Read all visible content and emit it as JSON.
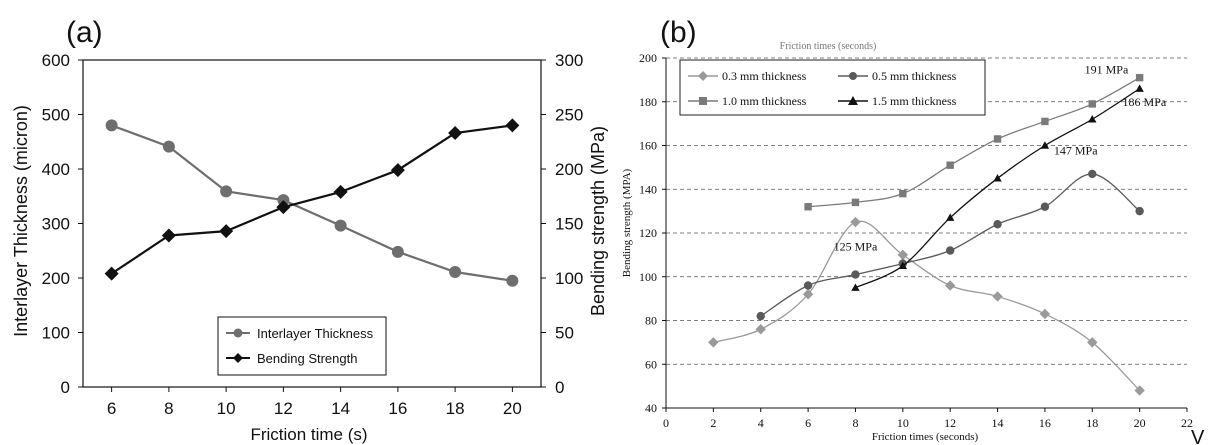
{
  "chart_data": [
    {
      "type": "line",
      "panel_label": "(a)",
      "xlabel": "Friction time (s)",
      "ylabel_left": "Interlayer Thickness (micron)",
      "ylabel_right": "Bending strength (MPa)",
      "x_ticks": [
        "6",
        "8",
        "10",
        "12",
        "14",
        "16",
        "18",
        "20"
      ],
      "y_left_ticks": [
        "0",
        "100",
        "200",
        "300",
        "400",
        "500",
        "600"
      ],
      "y_right_ticks": [
        "0",
        "50",
        "100",
        "150",
        "200",
        "250",
        "300"
      ],
      "ylim_left": [
        0,
        600
      ],
      "ylim_right": [
        0,
        300
      ],
      "grid": false,
      "legend_placement": "bottom-right",
      "series": [
        {
          "name": "Interlayer Thickness",
          "axis": "left",
          "marker": "circle",
          "color": "#6e6e6e",
          "x": [
            6,
            8,
            10,
            12,
            14,
            16,
            18,
            20
          ],
          "values": [
            480,
            441,
            359,
            343,
            296,
            248,
            211,
            195
          ]
        },
        {
          "name": "Bending Strength",
          "axis": "right",
          "marker": "diamond",
          "color": "#111111",
          "x": [
            6,
            8,
            10,
            12,
            14,
            16,
            18,
            20
          ],
          "values": [
            104,
            139,
            143,
            165,
            179,
            199,
            233,
            240
          ]
        }
      ]
    },
    {
      "type": "line",
      "panel_label": "(b)",
      "xlabel": "Friction times (seconds)",
      "ylabel": "Bending strength (MPA)",
      "x_ticks": [
        "0",
        "2",
        "4",
        "6",
        "8",
        "10",
        "12",
        "14",
        "16",
        "18",
        "20",
        "22"
      ],
      "y_ticks": [
        "40",
        "60",
        "80",
        "100",
        "120",
        "140",
        "160",
        "180",
        "200"
      ],
      "xlim": [
        0,
        22
      ],
      "ylim": [
        40,
        200
      ],
      "grid": "horizontal dashed",
      "legend_placement": "top-left",
      "series": [
        {
          "name": "0.3 mm thickness",
          "marker": "diamond",
          "color": "#9a9a9a",
          "x": [
            2,
            4,
            6,
            8,
            10,
            12,
            14,
            16,
            18,
            20
          ],
          "values": [
            70,
            76,
            92,
            125,
            110,
            96,
            91,
            83,
            70,
            48
          ]
        },
        {
          "name": "0.5 mm thickness",
          "marker": "circle",
          "color": "#5a5a5a",
          "x": [
            4,
            6,
            8,
            10,
            12,
            14,
            16,
            18,
            20
          ],
          "values": [
            82,
            96,
            101,
            106,
            112,
            124,
            132,
            147,
            130
          ]
        },
        {
          "name": "1.0 mm thickness",
          "marker": "square",
          "color": "#7a7a7a",
          "x": [
            6,
            8,
            10,
            12,
            14,
            16,
            18,
            20
          ],
          "values": [
            132,
            134,
            138,
            151,
            163,
            171,
            179,
            191
          ]
        },
        {
          "name": "1.5 mm thickness",
          "marker": "triangle",
          "color": "#111111",
          "x": [
            8,
            10,
            12,
            14,
            16,
            18,
            20
          ],
          "values": [
            95,
            105,
            127,
            145,
            160,
            172,
            186
          ]
        }
      ],
      "annotations": [
        {
          "text": "191 MPa",
          "x": 18.6,
          "y": 193
        },
        {
          "text": "186 MPa",
          "x": 20.2,
          "y": 178
        },
        {
          "text": "147 MPa",
          "x": 17.3,
          "y": 156
        },
        {
          "text": "125 MPa",
          "x": 8.0,
          "y": 112
        }
      ],
      "top_cut_text": "Friction times (seconds)"
    }
  ],
  "stray_letter": "V"
}
